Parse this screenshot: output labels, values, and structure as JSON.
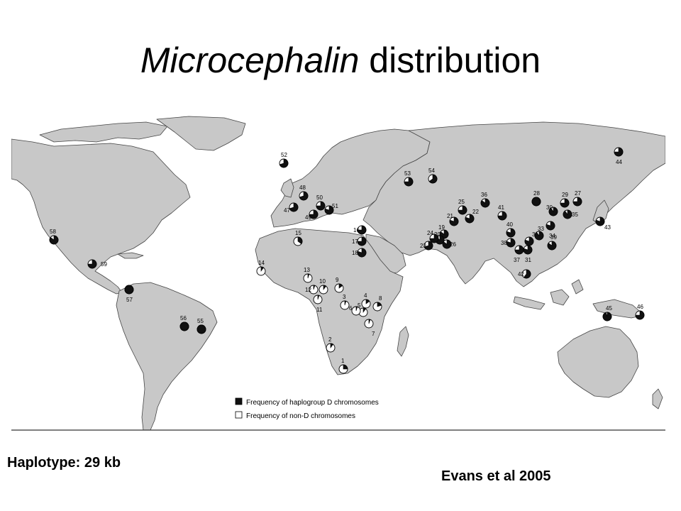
{
  "slide": {
    "title_italic": "Microcephalin",
    "title_rest": " distribution",
    "haplotype_label": "Haplotype:  29 kb",
    "citation": "Evans et al 2005"
  },
  "legend": {
    "dark_label": "Frequency of haplogroup D chromosomes",
    "light_label": "Frequency of non-D chromosomes",
    "dark_color": "#111111",
    "light_color": "#ffffff"
  },
  "map_colors": {
    "land": "#c8c8c8",
    "ocean": "#ffffff",
    "outline": "#444444"
  },
  "populations": [
    {
      "id": "1",
      "d": 0.25
    },
    {
      "id": "2",
      "d": 0.1
    },
    {
      "id": "3",
      "d": 0.05
    },
    {
      "id": "4",
      "d": 0.15
    },
    {
      "id": "5",
      "d": 0.1
    },
    {
      "id": "6",
      "d": 0.05
    },
    {
      "id": "7",
      "d": 0.05
    },
    {
      "id": "8",
      "d": 0.2
    },
    {
      "id": "9",
      "d": 0.15
    },
    {
      "id": "10",
      "d": 0.1
    },
    {
      "id": "11",
      "d": 0.05
    },
    {
      "id": "12",
      "d": 0.05
    },
    {
      "id": "13",
      "d": 0.05
    },
    {
      "id": "14",
      "d": 0.1
    },
    {
      "id": "15",
      "d": 0.35
    },
    {
      "id": "16",
      "d": 0.75
    },
    {
      "id": "17",
      "d": 0.75
    },
    {
      "id": "18",
      "d": 0.8
    },
    {
      "id": "19",
      "d": 0.85
    },
    {
      "id": "20",
      "d": 0.85
    },
    {
      "id": "21",
      "d": 0.8
    },
    {
      "id": "22",
      "d": 0.8
    },
    {
      "id": "23",
      "d": 0.7
    },
    {
      "id": "24",
      "d": 0.75
    },
    {
      "id": "25",
      "d": 0.75
    },
    {
      "id": "26",
      "d": 0.85
    },
    {
      "id": "27",
      "d": 0.75
    },
    {
      "id": "28",
      "d": 1.0
    },
    {
      "id": "29",
      "d": 0.75
    },
    {
      "id": "30",
      "d": 0.9
    },
    {
      "id": "31",
      "d": 0.8
    },
    {
      "id": "32",
      "d": 0.8
    },
    {
      "id": "33",
      "d": 0.9
    },
    {
      "id": "34",
      "d": 0.8
    },
    {
      "id": "35",
      "d": 0.9
    },
    {
      "id": "36",
      "d": 0.85
    },
    {
      "id": "37",
      "d": 0.75
    },
    {
      "id": "38",
      "d": 0.8
    },
    {
      "id": "39",
      "d": 0.85
    },
    {
      "id": "40",
      "d": 0.8
    },
    {
      "id": "41",
      "d": 0.75
    },
    {
      "id": "42",
      "d": 0.6
    },
    {
      "id": "43",
      "d": 0.8
    },
    {
      "id": "44",
      "d": 0.75
    },
    {
      "id": "45",
      "d": 0.95
    },
    {
      "id": "46",
      "d": 0.75
    },
    {
      "id": "47",
      "d": 0.7
    },
    {
      "id": "48",
      "d": 0.7
    },
    {
      "id": "49",
      "d": 0.75
    },
    {
      "id": "50",
      "d": 0.75
    },
    {
      "id": "51",
      "d": 0.8
    },
    {
      "id": "52",
      "d": 0.7
    },
    {
      "id": "53",
      "d": 0.75
    },
    {
      "id": "54",
      "d": 0.65
    },
    {
      "id": "55",
      "d": 1.0
    },
    {
      "id": "56",
      "d": 1.0
    },
    {
      "id": "57",
      "d": 1.0
    },
    {
      "id": "58",
      "d": 0.85
    },
    {
      "id": "59",
      "d": 0.75
    }
  ]
}
